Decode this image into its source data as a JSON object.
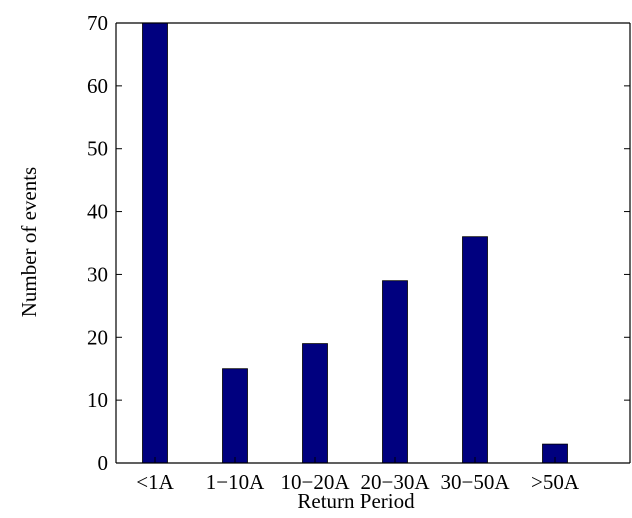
{
  "chart_data": {
    "type": "bar",
    "categories": [
      "<1A",
      "1−10A",
      "10−20A",
      "20−30A",
      "30−50A",
      ">50A"
    ],
    "values": [
      70,
      15,
      19,
      29,
      36,
      3
    ],
    "title": "",
    "xlabel": "Return Period",
    "ylabel": "Number of events",
    "ylim": [
      0,
      70
    ],
    "yticks": [
      0,
      10,
      20,
      30,
      40,
      50,
      60,
      70
    ],
    "grid": false,
    "bar_color": "#00007f",
    "axis_color": "#000000"
  }
}
